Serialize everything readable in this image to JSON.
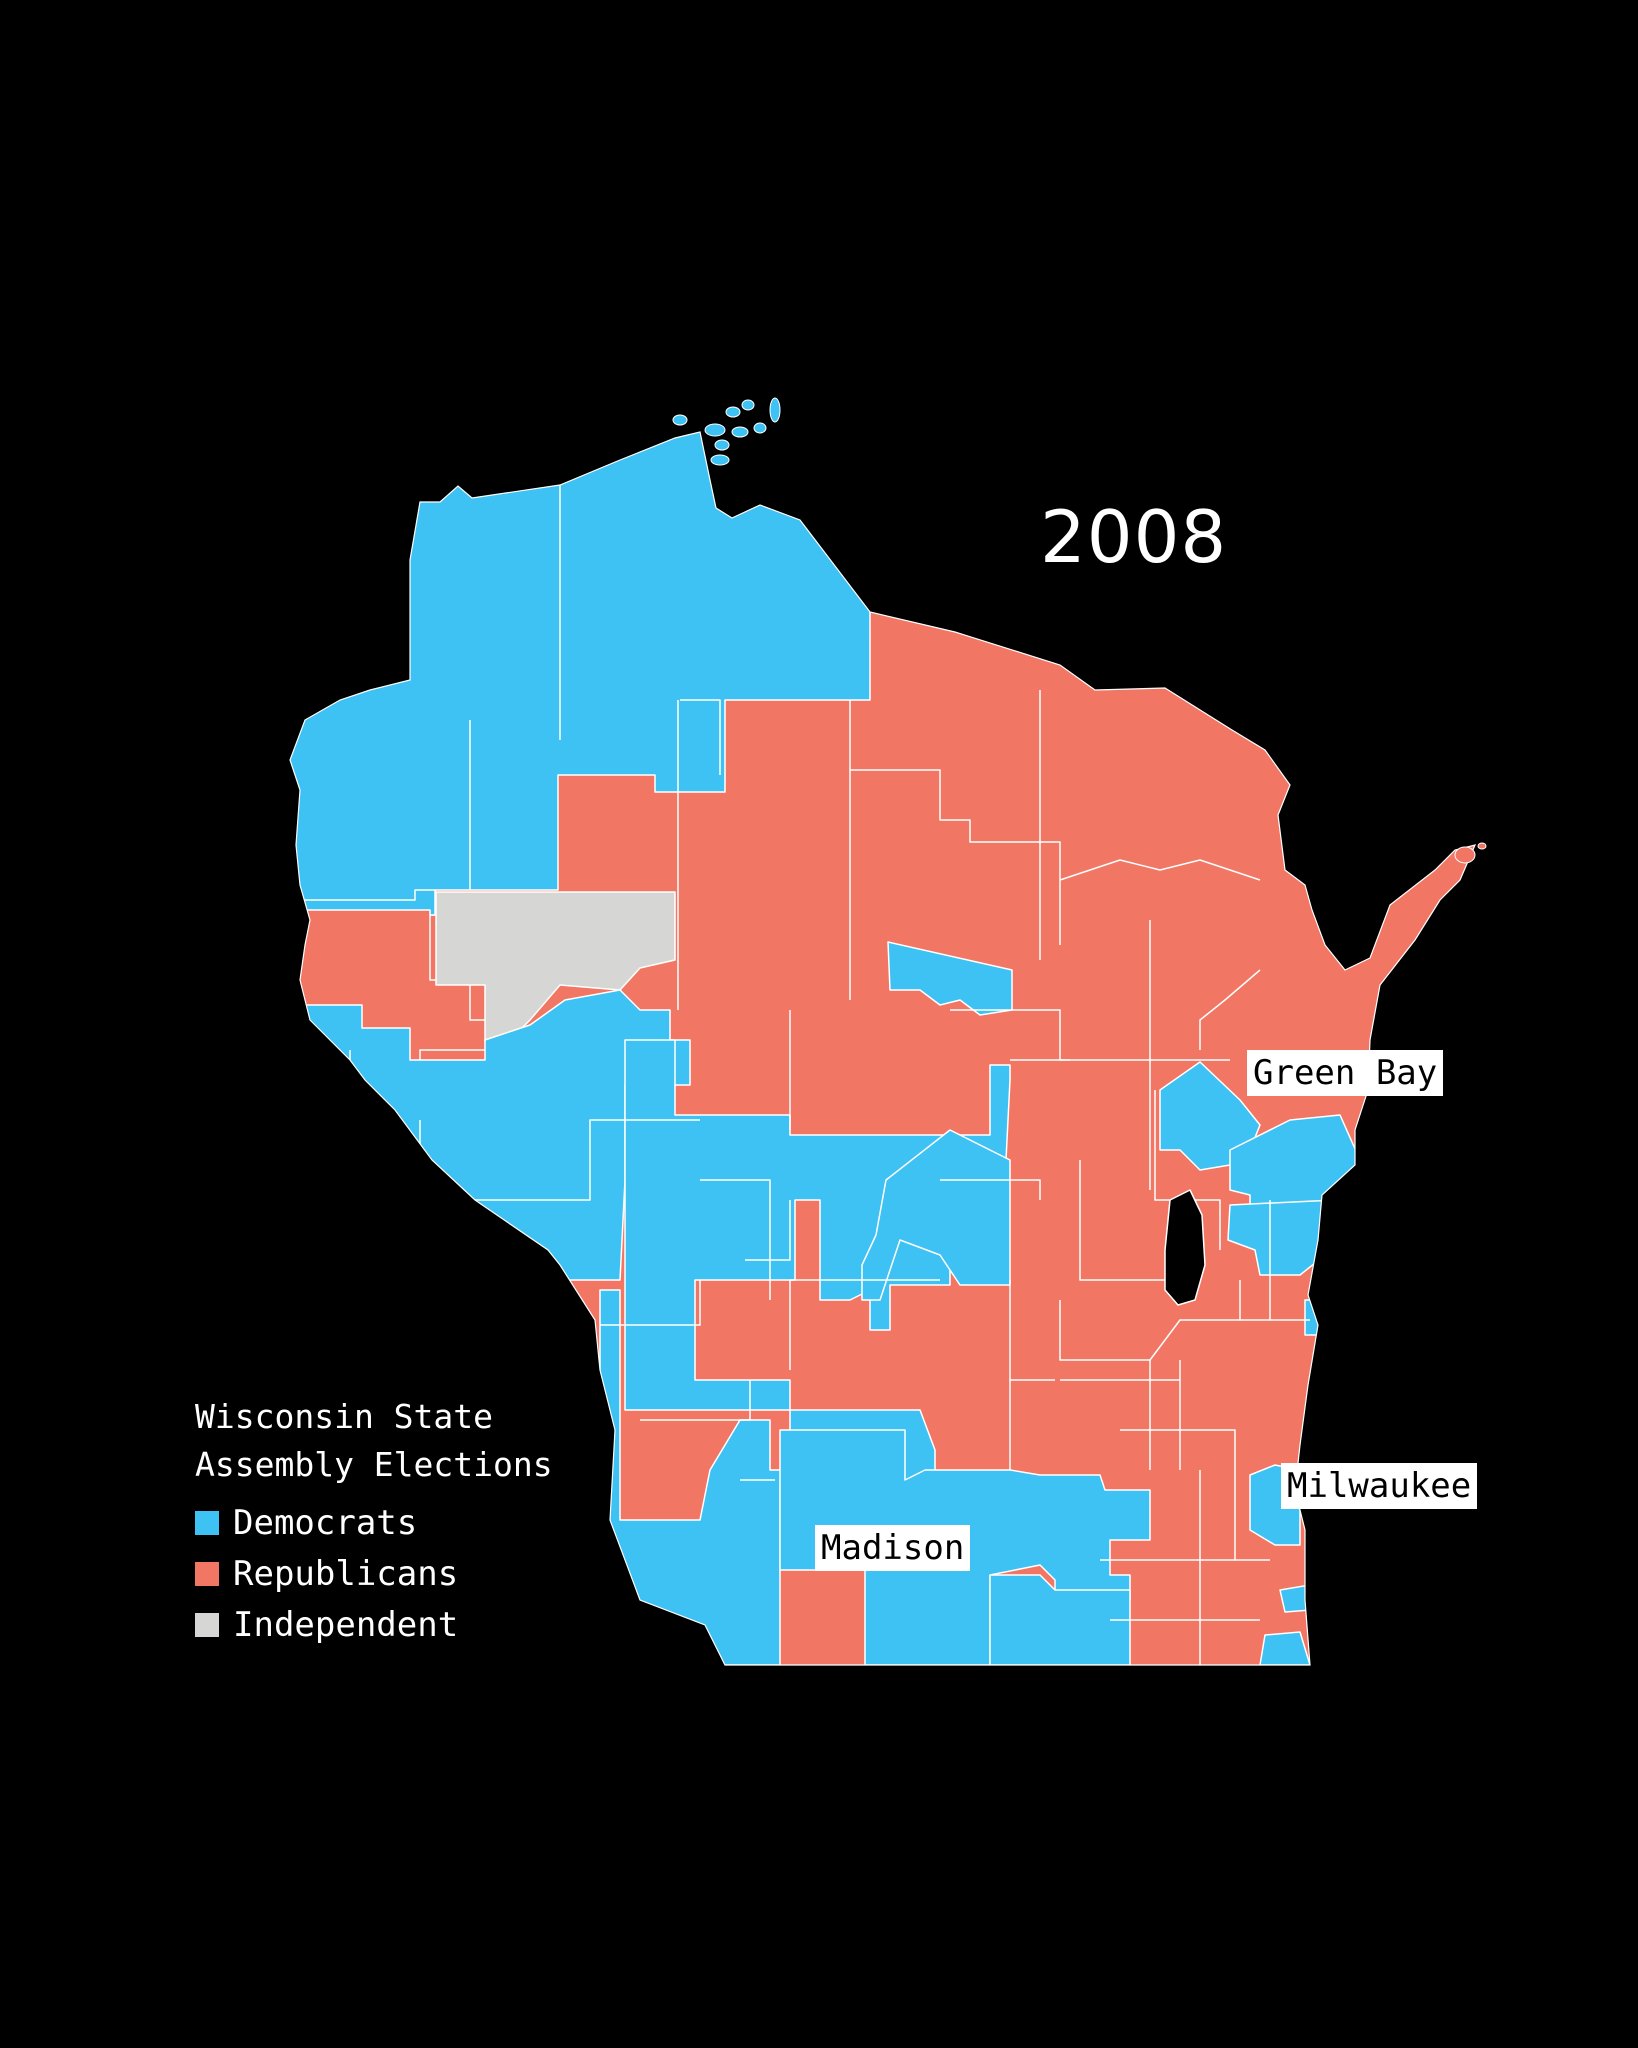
{
  "year": "2008",
  "colors": {
    "democrat": "#3EC1F3",
    "republican": "#F27664",
    "independent": "#D6D6D4",
    "background": "#000000",
    "border": "#FFFFFF"
  },
  "legend": {
    "title": "Wisconsin State\nAssembly Elections",
    "items": [
      {
        "label": "Democrats",
        "party": "democrat"
      },
      {
        "label": "Republicans",
        "party": "republican"
      },
      {
        "label": "Independent",
        "party": "independent"
      }
    ]
  },
  "cities": {
    "green_bay": "Green Bay",
    "milwaukee": "Milwaukee",
    "madison": "Madison"
  }
}
